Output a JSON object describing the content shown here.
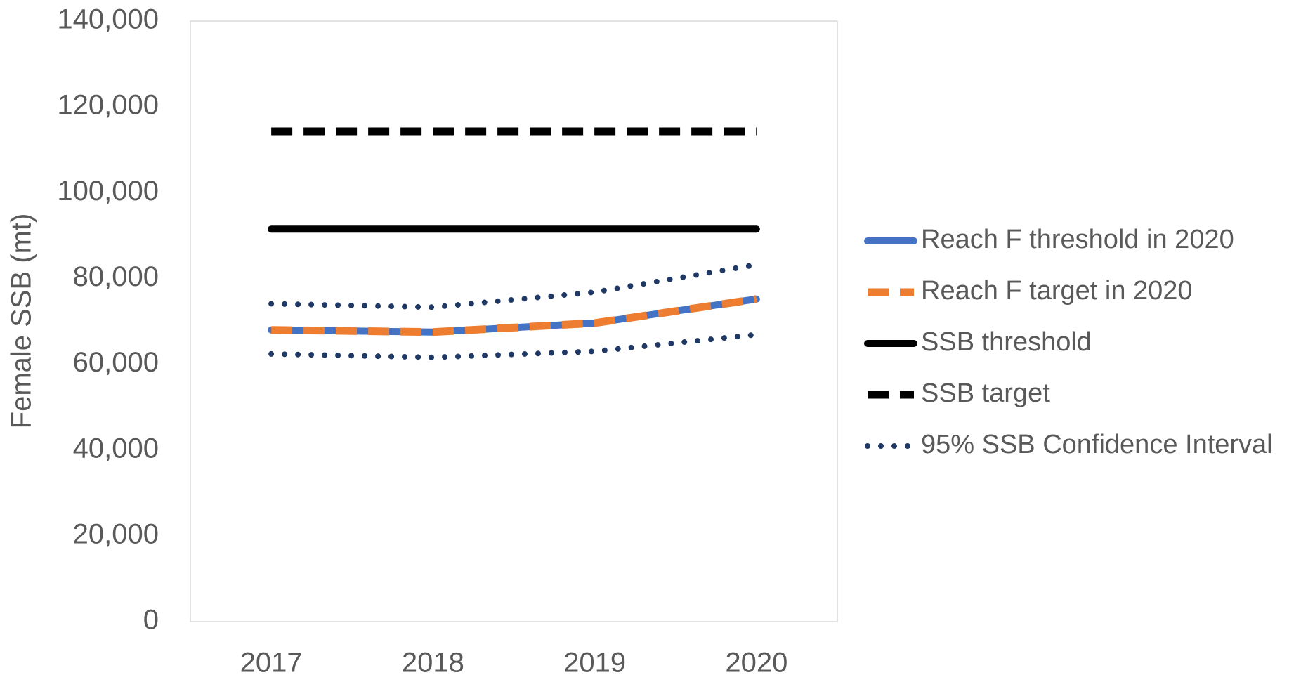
{
  "chart_data": {
    "type": "line",
    "y_label": "Female SSB (mt)",
    "categories": [
      "2017",
      "2018",
      "2019",
      "2020"
    ],
    "ylim": [
      0,
      140000
    ],
    "yticks": [
      0,
      {
        "value": 20000,
        "label": "20,000"
      },
      {
        "value": 40000,
        "label": "40,000"
      },
      {
        "value": 60000,
        "label": "60,000"
      },
      {
        "value": 80000,
        "label": "80,000"
      },
      {
        "value": 100000,
        "label": "100,000"
      },
      {
        "value": 120000,
        "label": "120,000"
      },
      {
        "value": 140000,
        "label": "140,000"
      }
    ],
    "grid": false,
    "legend": "right",
    "series": [
      {
        "name": "Reach F threshold in 2020",
        "color": "#4472c4",
        "dash": "solid",
        "values": [
          68000,
          67500,
          69600,
          75200
        ]
      },
      {
        "name": "Reach F target in 2020",
        "color": "#ed7d31",
        "dash": "dash",
        "values": [
          68000,
          67500,
          69600,
          75200
        ]
      },
      {
        "name": "SSB threshold",
        "color": "#000000",
        "dash": "solid",
        "values": [
          91500,
          91500,
          91500,
          91500
        ]
      },
      {
        "name": "SSB target",
        "color": "#000000",
        "dash": "dash",
        "values": [
          114300,
          114300,
          114300,
          114300
        ]
      },
      {
        "name": "95% SSB Confidence Interval",
        "color": "#1f3864",
        "dash": "dot",
        "upper": [
          74100,
          73300,
          76800,
          83200
        ],
        "lower": [
          62400,
          61600,
          63000,
          66900
        ]
      }
    ]
  }
}
